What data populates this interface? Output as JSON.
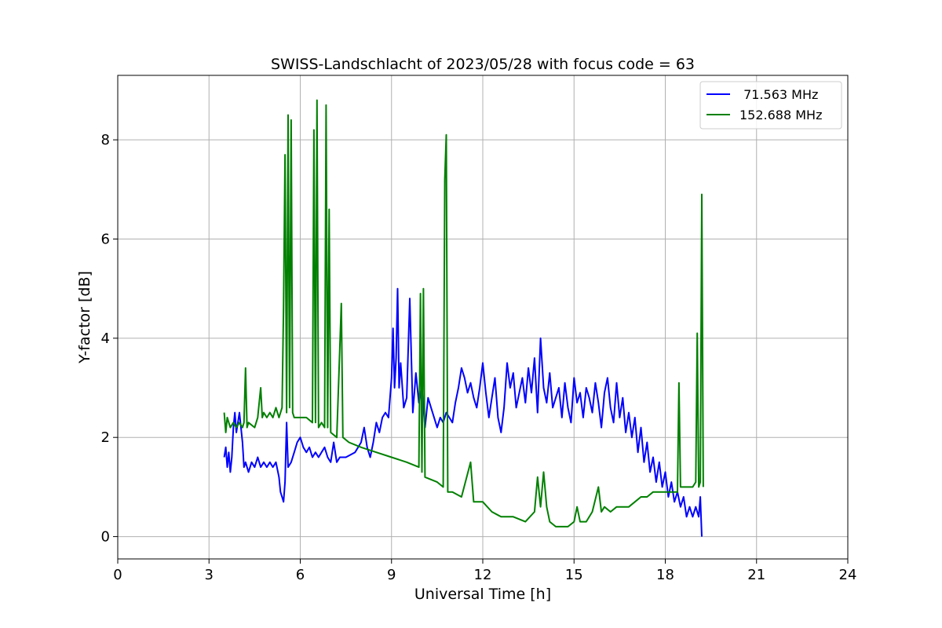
{
  "chart_data": {
    "type": "line",
    "title": "SWISS-Landschlacht of 2023/05/28 with focus code = 63",
    "xlabel": "Universal Time [h]",
    "ylabel": "Y-factor [dB]",
    "xlim": [
      0,
      24
    ],
    "ylim": [
      -0.45,
      9.3
    ],
    "x_ticks": [
      0,
      3,
      6,
      9,
      12,
      15,
      18,
      21,
      24
    ],
    "y_ticks": [
      0,
      2,
      4,
      6,
      8
    ],
    "grid": true,
    "legend_position": "top-right",
    "series": [
      {
        "name": " 71.563 MHz",
        "color": "#0000ff",
        "points": [
          [
            3.5,
            1.6
          ],
          [
            3.55,
            1.8
          ],
          [
            3.6,
            1.4
          ],
          [
            3.65,
            1.7
          ],
          [
            3.7,
            1.3
          ],
          [
            3.75,
            1.6
          ],
          [
            3.8,
            2.2
          ],
          [
            3.85,
            2.5
          ],
          [
            3.9,
            2.1
          ],
          [
            4.0,
            2.5
          ],
          [
            4.1,
            1.9
          ],
          [
            4.15,
            1.4
          ],
          [
            4.2,
            1.5
          ],
          [
            4.3,
            1.3
          ],
          [
            4.4,
            1.5
          ],
          [
            4.5,
            1.4
          ],
          [
            4.6,
            1.6
          ],
          [
            4.7,
            1.4
          ],
          [
            4.8,
            1.5
          ],
          [
            4.9,
            1.4
          ],
          [
            5.0,
            1.5
          ],
          [
            5.1,
            1.4
          ],
          [
            5.2,
            1.5
          ],
          [
            5.3,
            1.2
          ],
          [
            5.35,
            0.9
          ],
          [
            5.4,
            0.8
          ],
          [
            5.45,
            0.7
          ],
          [
            5.5,
            1.1
          ],
          [
            5.55,
            2.3
          ],
          [
            5.6,
            1.4
          ],
          [
            5.7,
            1.5
          ],
          [
            5.8,
            1.7
          ],
          [
            5.9,
            1.9
          ],
          [
            6.0,
            2.0
          ],
          [
            6.1,
            1.8
          ],
          [
            6.2,
            1.7
          ],
          [
            6.3,
            1.8
          ],
          [
            6.4,
            1.6
          ],
          [
            6.5,
            1.7
          ],
          [
            6.6,
            1.6
          ],
          [
            6.7,
            1.7
          ],
          [
            6.8,
            1.8
          ],
          [
            6.9,
            1.6
          ],
          [
            7.0,
            1.5
          ],
          [
            7.1,
            1.9
          ],
          [
            7.2,
            1.5
          ],
          [
            7.3,
            1.6
          ],
          [
            7.5,
            1.6
          ],
          [
            7.8,
            1.7
          ],
          [
            8.0,
            1.9
          ],
          [
            8.1,
            2.2
          ],
          [
            8.2,
            1.8
          ],
          [
            8.3,
            1.6
          ],
          [
            8.4,
            1.9
          ],
          [
            8.5,
            2.3
          ],
          [
            8.6,
            2.1
          ],
          [
            8.7,
            2.4
          ],
          [
            8.8,
            2.5
          ],
          [
            8.9,
            2.4
          ],
          [
            9.0,
            3.2
          ],
          [
            9.05,
            4.2
          ],
          [
            9.1,
            3.0
          ],
          [
            9.15,
            3.6
          ],
          [
            9.2,
            5.0
          ],
          [
            9.25,
            3.0
          ],
          [
            9.3,
            3.5
          ],
          [
            9.4,
            2.6
          ],
          [
            9.5,
            2.8
          ],
          [
            9.6,
            4.8
          ],
          [
            9.7,
            2.5
          ],
          [
            9.8,
            3.3
          ],
          [
            9.9,
            2.7
          ],
          [
            10.0,
            3.0
          ],
          [
            10.1,
            2.2
          ],
          [
            10.2,
            2.8
          ],
          [
            10.3,
            2.6
          ],
          [
            10.4,
            2.4
          ],
          [
            10.5,
            2.2
          ],
          [
            10.6,
            2.4
          ],
          [
            10.7,
            2.3
          ],
          [
            10.8,
            2.5
          ],
          [
            10.9,
            2.4
          ],
          [
            11.0,
            2.3
          ],
          [
            11.1,
            2.7
          ],
          [
            11.2,
            3.0
          ],
          [
            11.3,
            3.4
          ],
          [
            11.4,
            3.2
          ],
          [
            11.5,
            2.9
          ],
          [
            11.6,
            3.1
          ],
          [
            11.7,
            2.8
          ],
          [
            11.8,
            2.6
          ],
          [
            11.9,
            3.0
          ],
          [
            12.0,
            3.5
          ],
          [
            12.1,
            2.9
          ],
          [
            12.2,
            2.4
          ],
          [
            12.3,
            2.8
          ],
          [
            12.4,
            3.2
          ],
          [
            12.5,
            2.4
          ],
          [
            12.6,
            2.1
          ],
          [
            12.7,
            2.6
          ],
          [
            12.8,
            3.5
          ],
          [
            12.9,
            3.0
          ],
          [
            13.0,
            3.3
          ],
          [
            13.1,
            2.6
          ],
          [
            13.2,
            2.9
          ],
          [
            13.3,
            3.2
          ],
          [
            13.4,
            2.7
          ],
          [
            13.5,
            3.4
          ],
          [
            13.6,
            2.9
          ],
          [
            13.7,
            3.6
          ],
          [
            13.8,
            2.5
          ],
          [
            13.9,
            4.0
          ],
          [
            14.0,
            3.0
          ],
          [
            14.1,
            2.7
          ],
          [
            14.2,
            3.3
          ],
          [
            14.3,
            2.6
          ],
          [
            14.4,
            2.8
          ],
          [
            14.5,
            3.0
          ],
          [
            14.6,
            2.4
          ],
          [
            14.7,
            3.1
          ],
          [
            14.8,
            2.6
          ],
          [
            14.9,
            2.3
          ],
          [
            15.0,
            3.2
          ],
          [
            15.1,
            2.7
          ],
          [
            15.2,
            2.9
          ],
          [
            15.3,
            2.4
          ],
          [
            15.4,
            3.0
          ],
          [
            15.5,
            2.8
          ],
          [
            15.6,
            2.5
          ],
          [
            15.7,
            3.1
          ],
          [
            15.8,
            2.7
          ],
          [
            15.9,
            2.2
          ],
          [
            16.0,
            2.9
          ],
          [
            16.1,
            3.2
          ],
          [
            16.2,
            2.6
          ],
          [
            16.3,
            2.3
          ],
          [
            16.4,
            3.1
          ],
          [
            16.5,
            2.4
          ],
          [
            16.6,
            2.8
          ],
          [
            16.7,
            2.1
          ],
          [
            16.8,
            2.5
          ],
          [
            16.9,
            2.0
          ],
          [
            17.0,
            2.4
          ],
          [
            17.1,
            1.7
          ],
          [
            17.2,
            2.2
          ],
          [
            17.3,
            1.5
          ],
          [
            17.4,
            1.9
          ],
          [
            17.5,
            1.3
          ],
          [
            17.6,
            1.6
          ],
          [
            17.7,
            1.1
          ],
          [
            17.8,
            1.5
          ],
          [
            17.9,
            1.0
          ],
          [
            18.0,
            1.3
          ],
          [
            18.1,
            0.8
          ],
          [
            18.2,
            1.1
          ],
          [
            18.3,
            0.7
          ],
          [
            18.4,
            0.9
          ],
          [
            18.5,
            0.6
          ],
          [
            18.6,
            0.8
          ],
          [
            18.7,
            0.4
          ],
          [
            18.8,
            0.6
          ],
          [
            18.9,
            0.4
          ],
          [
            19.0,
            0.6
          ],
          [
            19.1,
            0.4
          ],
          [
            19.15,
            0.8
          ],
          [
            19.2,
            0.0
          ]
        ]
      },
      {
        "name": "152.688 MHz",
        "color": "#008000",
        "points": [
          [
            3.5,
            2.5
          ],
          [
            3.55,
            2.1
          ],
          [
            3.6,
            2.4
          ],
          [
            3.7,
            2.2
          ],
          [
            3.8,
            2.3
          ],
          [
            3.9,
            2.2
          ],
          [
            4.0,
            2.3
          ],
          [
            4.1,
            2.2
          ],
          [
            4.15,
            2.3
          ],
          [
            4.2,
            3.4
          ],
          [
            4.25,
            2.2
          ],
          [
            4.3,
            2.3
          ],
          [
            4.5,
            2.2
          ],
          [
            4.6,
            2.4
          ],
          [
            4.7,
            3.0
          ],
          [
            4.75,
            2.4
          ],
          [
            4.8,
            2.5
          ],
          [
            4.9,
            2.4
          ],
          [
            5.0,
            2.5
          ],
          [
            5.1,
            2.4
          ],
          [
            5.2,
            2.6
          ],
          [
            5.3,
            2.4
          ],
          [
            5.4,
            2.6
          ],
          [
            5.45,
            4.6
          ],
          [
            5.5,
            7.7
          ],
          [
            5.55,
            2.5
          ],
          [
            5.6,
            8.5
          ],
          [
            5.65,
            2.6
          ],
          [
            5.7,
            8.4
          ],
          [
            5.75,
            2.5
          ],
          [
            5.8,
            2.4
          ],
          [
            6.0,
            2.4
          ],
          [
            6.2,
            2.4
          ],
          [
            6.4,
            2.3
          ],
          [
            6.45,
            8.2
          ],
          [
            6.5,
            2.3
          ],
          [
            6.55,
            8.8
          ],
          [
            6.6,
            2.2
          ],
          [
            6.7,
            2.3
          ],
          [
            6.8,
            2.2
          ],
          [
            6.85,
            8.7
          ],
          [
            6.9,
            2.2
          ],
          [
            6.95,
            6.6
          ],
          [
            7.0,
            2.1
          ],
          [
            7.2,
            2.0
          ],
          [
            7.35,
            4.7
          ],
          [
            7.4,
            2.0
          ],
          [
            7.6,
            1.9
          ],
          [
            8.0,
            1.8
          ],
          [
            8.5,
            1.7
          ],
          [
            9.0,
            1.6
          ],
          [
            9.5,
            1.5
          ],
          [
            9.9,
            1.4
          ],
          [
            9.95,
            4.9
          ],
          [
            10.0,
            1.3
          ],
          [
            10.05,
            5.0
          ],
          [
            10.1,
            1.2
          ],
          [
            10.5,
            1.1
          ],
          [
            10.7,
            1.0
          ],
          [
            10.75,
            7.2
          ],
          [
            10.8,
            8.1
          ],
          [
            10.85,
            0.9
          ],
          [
            11.0,
            0.9
          ],
          [
            11.3,
            0.8
          ],
          [
            11.6,
            1.5
          ],
          [
            11.7,
            0.7
          ],
          [
            12.0,
            0.7
          ],
          [
            12.3,
            0.5
          ],
          [
            12.6,
            0.4
          ],
          [
            13.0,
            0.4
          ],
          [
            13.4,
            0.3
          ],
          [
            13.7,
            0.5
          ],
          [
            13.8,
            1.2
          ],
          [
            13.9,
            0.6
          ],
          [
            14.0,
            1.3
          ],
          [
            14.1,
            0.6
          ],
          [
            14.2,
            0.3
          ],
          [
            14.4,
            0.2
          ],
          [
            14.6,
            0.2
          ],
          [
            14.8,
            0.2
          ],
          [
            15.0,
            0.3
          ],
          [
            15.1,
            0.6
          ],
          [
            15.2,
            0.3
          ],
          [
            15.4,
            0.3
          ],
          [
            15.6,
            0.5
          ],
          [
            15.8,
            1.0
          ],
          [
            15.9,
            0.5
          ],
          [
            16.0,
            0.6
          ],
          [
            16.2,
            0.5
          ],
          [
            16.4,
            0.6
          ],
          [
            16.6,
            0.6
          ],
          [
            16.8,
            0.6
          ],
          [
            17.0,
            0.7
          ],
          [
            17.2,
            0.8
          ],
          [
            17.4,
            0.8
          ],
          [
            17.6,
            0.9
          ],
          [
            17.8,
            0.9
          ],
          [
            18.0,
            0.9
          ],
          [
            18.2,
            0.9
          ],
          [
            18.4,
            0.9
          ],
          [
            18.45,
            3.1
          ],
          [
            18.5,
            1.0
          ],
          [
            18.7,
            1.0
          ],
          [
            18.9,
            1.0
          ],
          [
            19.0,
            1.1
          ],
          [
            19.05,
            4.1
          ],
          [
            19.1,
            1.0
          ],
          [
            19.15,
            1.1
          ],
          [
            19.2,
            6.9
          ],
          [
            19.25,
            1.0
          ]
        ]
      }
    ]
  }
}
